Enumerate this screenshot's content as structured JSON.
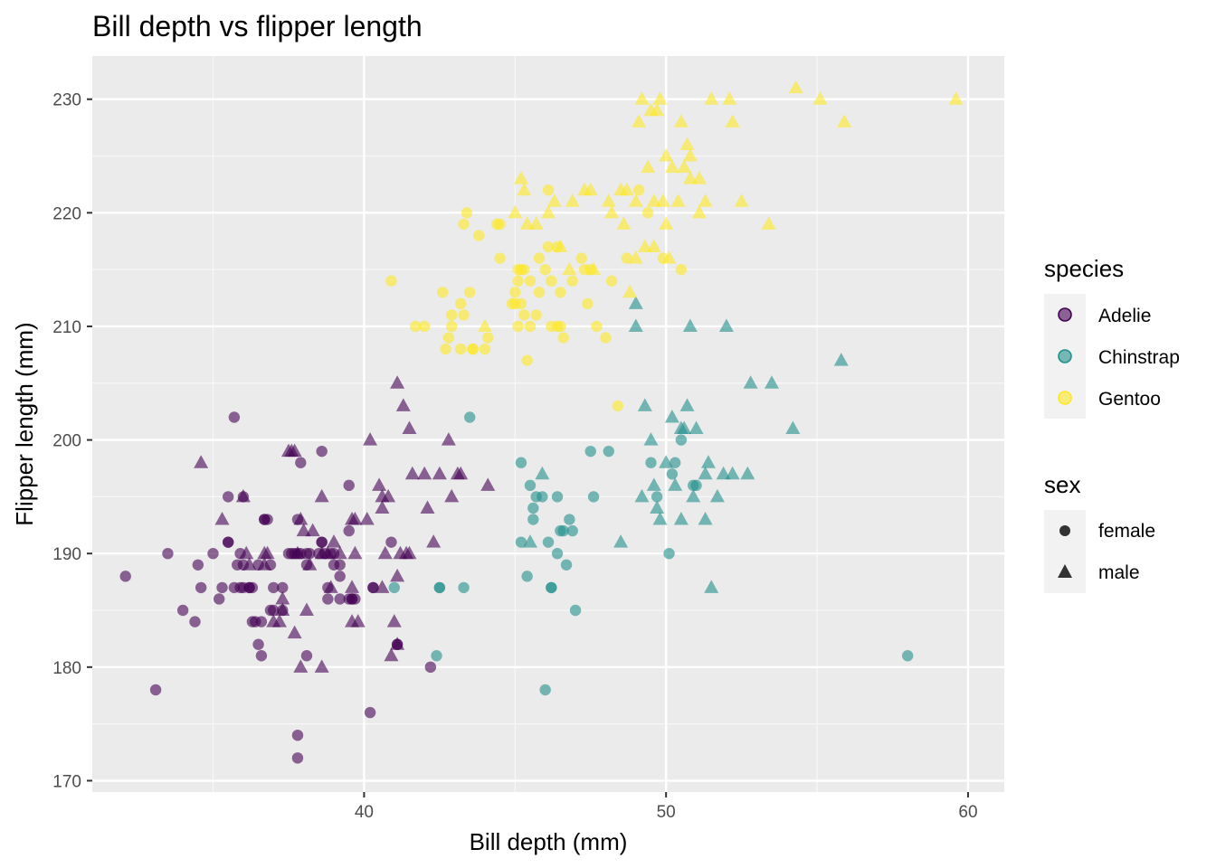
{
  "chart_data": {
    "type": "scatter",
    "title": "Bill depth vs flipper length",
    "xlabel": "Bill depth (mm)",
    "ylabel": "Flipper length (mm)",
    "xlim": [
      31,
      61.2
    ],
    "ylim": [
      169,
      233.8
    ],
    "x_ticks": [
      40,
      50,
      60
    ],
    "y_ticks": [
      170,
      180,
      190,
      200,
      210,
      220,
      230
    ],
    "grid": true,
    "legend_position": "right",
    "legends": {
      "species": {
        "title": "species",
        "entries": [
          {
            "label": "Adelie",
            "color": "#440154"
          },
          {
            "label": "Chinstrap",
            "color": "#21908C"
          },
          {
            "label": "Gentoo",
            "color": "#FDE725"
          }
        ]
      },
      "sex": {
        "title": "sex",
        "entries": [
          {
            "label": "female",
            "shape": "circle"
          },
          {
            "label": "male",
            "shape": "triangle"
          }
        ]
      }
    },
    "series": [
      {
        "name": "Adelie",
        "color": "#440154",
        "sex": "female",
        "shape": "circle",
        "x": [
          32.1,
          33.1,
          33.5,
          34.0,
          34.4,
          34.5,
          34.6,
          35.0,
          35.2,
          35.3,
          35.5,
          35.5,
          35.7,
          35.7,
          35.8,
          35.9,
          36.0,
          36.0,
          36.2,
          36.3,
          36.4,
          36.5,
          36.6,
          36.7,
          36.8,
          36.9,
          37.0,
          37.3,
          37.6,
          37.7,
          37.8,
          37.8,
          37.9,
          38.1,
          38.1,
          38.6,
          38.6,
          38.8,
          39.0,
          39.2,
          39.5,
          39.5,
          39.6,
          39.7,
          40.2,
          40.3,
          40.9,
          41.1,
          41.1,
          42.2,
          37.3,
          37.8,
          37.5,
          36.2,
          36.7,
          36.9,
          38.9,
          39.0,
          39.2,
          38.7,
          39.6,
          35.9,
          36.6,
          37.0,
          38.2,
          38.5,
          38.8,
          39.5,
          36.5,
          37.8,
          40.3,
          36.0,
          37.9,
          38.1,
          38.6,
          39.2,
          35.5,
          36.3
        ],
        "y": [
          188,
          178,
          190,
          185,
          184,
          189,
          187,
          190,
          186,
          187,
          195,
          191,
          202,
          187,
          189,
          190,
          195,
          187,
          187,
          187,
          184,
          182,
          184,
          193,
          193,
          185,
          185,
          185,
          190,
          190,
          174,
          172,
          198,
          181,
          190,
          199,
          191,
          186,
          189,
          189,
          196,
          186,
          186,
          186,
          176,
          187,
          191,
          182,
          182,
          180,
          187,
          193,
          190,
          187,
          193,
          189,
          190,
          190,
          186,
          190,
          186,
          187,
          181,
          187,
          190,
          190,
          187,
          192,
          189,
          190,
          187,
          189,
          190,
          189,
          191,
          188,
          191,
          184
        ]
      },
      {
        "name": "Adelie",
        "color": "#440154",
        "sex": "male",
        "shape": "triangle",
        "x": [
          34.6,
          35.3,
          36.1,
          36.2,
          36.7,
          36.7,
          36.8,
          37.2,
          37.3,
          37.5,
          37.6,
          37.7,
          37.8,
          37.9,
          38.1,
          38.3,
          38.6,
          38.6,
          38.8,
          39.0,
          39.2,
          39.6,
          39.6,
          39.7,
          39.8,
          40.2,
          40.6,
          40.6,
          40.8,
          40.9,
          41.0,
          41.1,
          41.1,
          41.3,
          41.4,
          41.5,
          41.6,
          42.0,
          42.3,
          42.5,
          42.9,
          43.1,
          43.2,
          44.1,
          37.7,
          38.2,
          38.9,
          39.6,
          40.1,
          41.1,
          37.3,
          37.0,
          37.9,
          38.6,
          40.7,
          41.5,
          42.1,
          42.8,
          40.6,
          41.2,
          36.0,
          38.0,
          39.7,
          40.5
        ],
        "y": [
          198,
          193,
          190,
          189,
          189,
          190,
          190,
          184,
          185,
          199,
          199,
          183,
          190,
          193,
          185,
          192,
          195,
          190,
          190,
          191,
          190,
          193,
          184,
          193,
          184,
          200,
          195,
          187,
          195,
          181,
          184,
          205,
          188,
          203,
          190,
          201,
          197,
          197,
          191,
          197,
          195,
          197,
          197,
          196,
          199,
          189,
          187,
          187,
          193,
          182,
          186,
          184,
          180,
          180,
          190,
          190,
          194,
          200,
          194,
          190,
          195,
          192,
          190,
          196
        ]
      },
      {
        "name": "Chinstrap",
        "color": "#21908C",
        "sex": "female",
        "shape": "circle",
        "x": [
          41.0,
          42.4,
          42.5,
          43.3,
          43.5,
          45.2,
          45.2,
          45.4,
          45.5,
          45.6,
          45.7,
          45.9,
          46.0,
          46.1,
          46.2,
          46.4,
          46.4,
          46.5,
          46.6,
          46.7,
          46.8,
          46.9,
          47.0,
          47.5,
          47.6,
          48.1,
          49.5,
          49.7,
          50.1,
          50.3,
          50.5,
          50.9,
          51.0,
          58.0,
          42.5,
          45.6,
          46.2,
          50.2
        ],
        "y": [
          187,
          181,
          187,
          187,
          202,
          191,
          198,
          188,
          196,
          194,
          195,
          195,
          178,
          191,
          187,
          195,
          190,
          192,
          192,
          189,
          193,
          192,
          185,
          199,
          195,
          199,
          198,
          195,
          190,
          198,
          200,
          196,
          196,
          181,
          187,
          193,
          187,
          197
        ]
      },
      {
        "name": "Chinstrap",
        "color": "#21908C",
        "sex": "male",
        "shape": "triangle",
        "x": [
          45.5,
          45.9,
          48.5,
          49.0,
          49.2,
          49.3,
          49.5,
          49.8,
          50.0,
          50.2,
          50.3,
          50.5,
          50.6,
          50.7,
          50.8,
          50.9,
          51.0,
          51.3,
          51.4,
          51.5,
          51.7,
          52.0,
          52.2,
          52.7,
          52.8,
          53.5,
          54.2,
          55.8,
          49.0,
          49.6,
          50.5,
          51.3,
          51.9,
          49.7
        ],
        "y": [
          191,
          197,
          191,
          210,
          195,
          203,
          200,
          193,
          198,
          202,
          196,
          193,
          201,
          203,
          210,
          195,
          201,
          193,
          198,
          187,
          195,
          210,
          197,
          197,
          205,
          205,
          201,
          207,
          212,
          196,
          201,
          197,
          197,
          194
        ]
      },
      {
        "name": "Gentoo",
        "color": "#FDE725",
        "sex": "female",
        "shape": "circle",
        "x": [
          40.9,
          41.7,
          42.0,
          42.6,
          42.7,
          42.8,
          42.9,
          43.2,
          43.2,
          43.3,
          43.3,
          43.4,
          43.5,
          43.6,
          43.8,
          44.0,
          44.4,
          44.5,
          44.9,
          45.0,
          45.1,
          45.1,
          45.2,
          45.2,
          45.3,
          45.3,
          45.4,
          45.5,
          45.5,
          45.7,
          45.8,
          46.0,
          46.1,
          46.2,
          46.4,
          46.4,
          46.5,
          46.6,
          46.9,
          47.2,
          47.4,
          47.5,
          47.7,
          48.2,
          48.4,
          48.7,
          49.1,
          49.9,
          50.5,
          45.1,
          46.2,
          45.0,
          45.8,
          46.5,
          47.3,
          42.9,
          44.5,
          46.1,
          43.6,
          44.1,
          48.0,
          49.4
        ],
        "y": [
          214,
          210,
          210,
          213,
          208,
          209,
          210,
          208,
          212,
          219,
          211,
          220,
          213,
          208,
          218,
          208,
          219,
          216,
          212,
          213,
          214,
          210,
          215,
          212,
          215,
          211,
          207,
          210,
          214,
          211,
          213,
          215,
          217,
          214,
          210,
          217,
          213,
          209,
          214,
          216,
          212,
          215,
          210,
          214,
          203,
          216,
          222,
          216,
          215,
          215,
          210,
          212,
          216,
          210,
          215,
          211,
          219,
          222,
          208,
          209,
          209,
          220
        ]
      },
      {
        "name": "Gentoo",
        "color": "#FDE725",
        "sex": "male",
        "shape": "triangle",
        "x": [
          44.0,
          45.0,
          45.2,
          45.4,
          45.7,
          46.1,
          46.3,
          46.5,
          46.8,
          47.3,
          47.5,
          48.1,
          48.5,
          48.6,
          48.7,
          48.8,
          49.0,
          49.1,
          49.2,
          49.3,
          49.4,
          49.5,
          49.6,
          49.7,
          49.8,
          49.9,
          50.0,
          50.1,
          50.2,
          50.4,
          50.5,
          50.6,
          50.7,
          50.8,
          50.8,
          51.1,
          51.3,
          51.5,
          52.1,
          52.2,
          52.5,
          53.4,
          54.3,
          55.1,
          55.9,
          59.6,
          47.6,
          48.2,
          49.0,
          50.0,
          51.1,
          49.6,
          45.3,
          46.9
        ],
        "y": [
          210,
          220,
          223,
          219,
          219,
          220,
          221,
          217,
          215,
          222,
          222,
          221,
          222,
          219,
          222,
          213,
          216,
          228,
          230,
          217,
          224,
          229,
          221,
          229,
          230,
          221,
          225,
          216,
          224,
          221,
          228,
          224,
          226,
          223,
          225,
          220,
          221,
          230,
          230,
          228,
          221,
          219,
          231,
          230,
          228,
          230,
          215,
          220,
          221,
          219,
          223,
          217,
          222,
          221
        ]
      }
    ]
  }
}
